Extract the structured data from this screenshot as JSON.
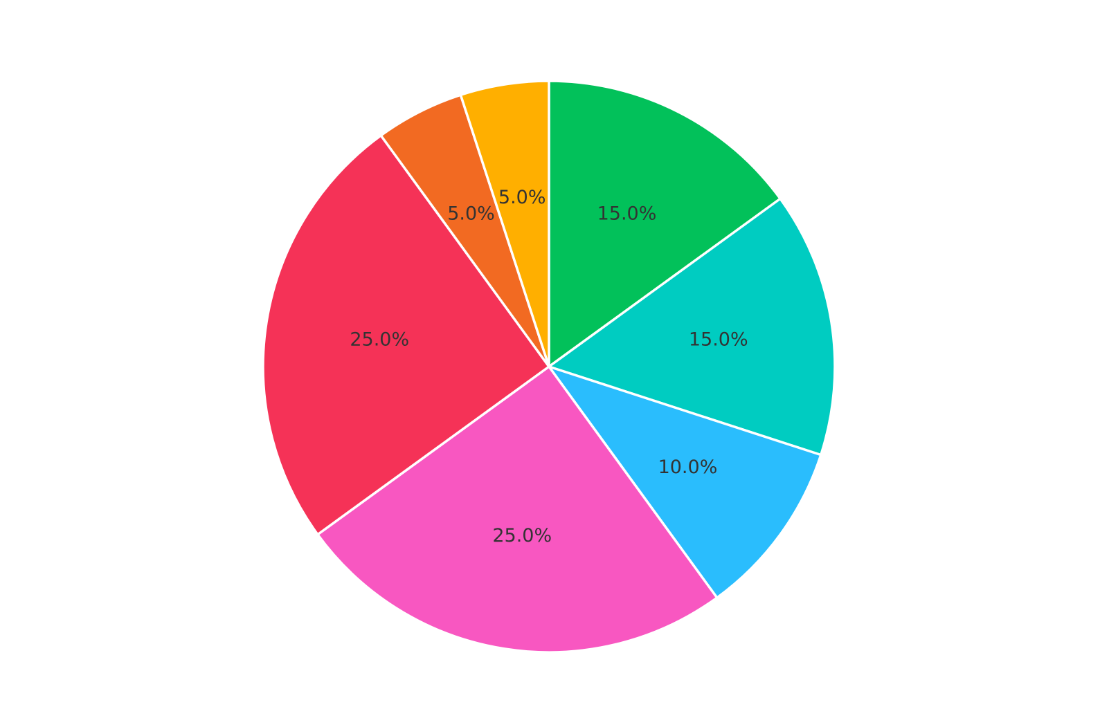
{
  "chart_data": {
    "type": "pie",
    "start": "12 o'clock, clockwise",
    "slices": [
      {
        "value": 15.0,
        "label": "15.0%",
        "color": "#02C15A"
      },
      {
        "value": 15.0,
        "label": "15.0%",
        "color": "#00CCC1"
      },
      {
        "value": 10.0,
        "label": "10.0%",
        "color": "#2ABDFD"
      },
      {
        "value": 25.0,
        "label": "25.0%",
        "color": "#F857C1"
      },
      {
        "value": 25.0,
        "label": "25.0%",
        "color": "#F53257"
      },
      {
        "value": 5.0,
        "label": "5.0%",
        "color": "#F26A22"
      },
      {
        "value": 5.0,
        "label": "5.0%",
        "color": "#FFAF00"
      }
    ],
    "slice_border_color": "#FFFFFF",
    "label_color": "#333333"
  }
}
